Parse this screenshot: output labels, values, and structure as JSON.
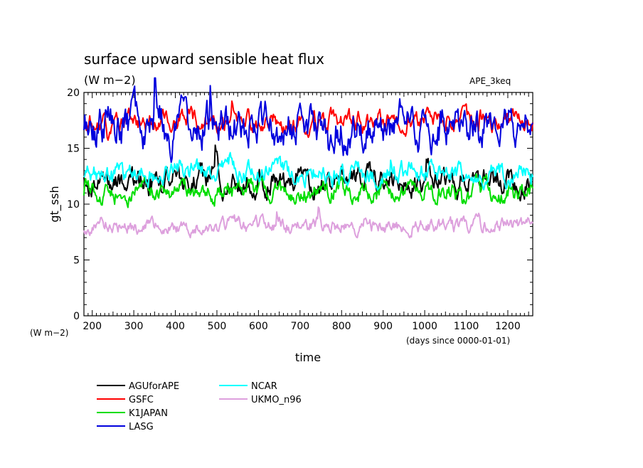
{
  "chart_data": {
    "type": "line",
    "title": "surface upward sensible heat flux",
    "units": "(W m−2)",
    "annotation": "APE_3keq",
    "ylabel": "gt_ssh",
    "y_unit_label": "(W m−2)",
    "xlabel": "time",
    "x_unit_label": "(days since 0000-01-01)",
    "xlim": [
      180,
      1260
    ],
    "ylim": [
      0,
      20
    ],
    "xticks": [
      200,
      300,
      400,
      500,
      600,
      700,
      800,
      900,
      1000,
      1100,
      1200
    ],
    "yticks": [
      0,
      5,
      10,
      15,
      20
    ],
    "series": [
      {
        "name": "AGUforAPE",
        "color": "#000000",
        "mean": 12.0,
        "amp": 1.0,
        "seed": 11
      },
      {
        "name": "GSFC",
        "color": "#ff0000",
        "mean": 17.4,
        "amp": 0.8,
        "seed": 23
      },
      {
        "name": "K1JAPAN",
        "color": "#00dd00",
        "mean": 11.1,
        "amp": 0.8,
        "seed": 37
      },
      {
        "name": "LASG",
        "color": "#0000dd",
        "mean": 17.0,
        "amp": 1.6,
        "seed": 51
      },
      {
        "name": "NCAR",
        "color": "#00ffff",
        "mean": 12.8,
        "amp": 0.8,
        "seed": 67
      },
      {
        "name": "UKMO_n96",
        "color": "#dda0dd",
        "mean": 8.1,
        "amp": 0.6,
        "seed": 83
      }
    ]
  }
}
